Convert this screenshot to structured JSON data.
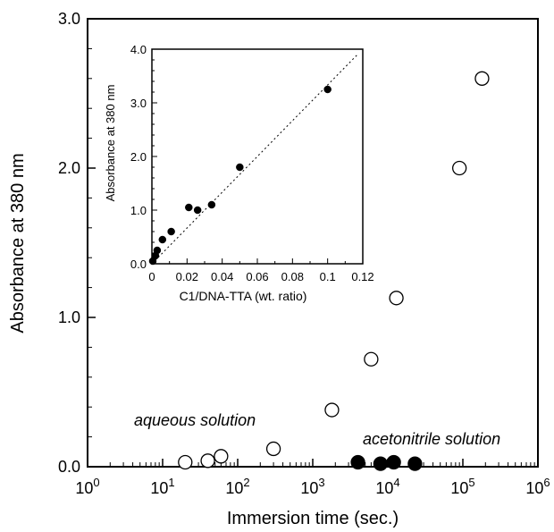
{
  "chart_data": [
    {
      "type": "scatter",
      "xscale": "log",
      "xlabel": "Immersion time (sec.)",
      "ylabel": "Absorbance at 380 nm",
      "xlim": [
        1,
        1000000
      ],
      "ylim": [
        0,
        3.0
      ],
      "x_ticks": [
        {
          "value": 1,
          "base": "10",
          "exp": "0"
        },
        {
          "value": 10,
          "base": "10",
          "exp": "1"
        },
        {
          "value": 100,
          "base": "10",
          "exp": "2"
        },
        {
          "value": 1000,
          "base": "10",
          "exp": "3"
        },
        {
          "value": 10000,
          "base": "10",
          "exp": "4"
        },
        {
          "value": 100000,
          "base": "10",
          "exp": "5"
        },
        {
          "value": 1000000,
          "base": "10",
          "exp": "6"
        }
      ],
      "y_ticks": [
        {
          "value": 0.0,
          "label": "0.0"
        },
        {
          "value": 1.0,
          "label": "1.0"
        },
        {
          "value": 2.0,
          "label": "2.0"
        },
        {
          "value": 3.0,
          "label": "3.0"
        }
      ],
      "series": [
        {
          "name": "aqueous solution",
          "marker": "open-circle",
          "x": [
            20,
            40,
            60,
            300,
            1800,
            6000,
            13000,
            90000,
            180000
          ],
          "y": [
            0.03,
            0.04,
            0.07,
            0.12,
            0.38,
            0.72,
            1.13,
            2.0,
            2.6
          ]
        },
        {
          "name": "acetonitrile solution",
          "marker": "filled-circle",
          "x": [
            4000,
            8000,
            12000,
            23000
          ],
          "y": [
            0.03,
            0.02,
            0.03,
            0.02
          ]
        }
      ],
      "grid": false
    },
    {
      "type": "scatter",
      "xlabel": "C1/DNA-TTA (wt. ratio)",
      "ylabel": "Absorbance at 380 nm",
      "xlim": [
        0,
        0.12
      ],
      "ylim": [
        0,
        4.0
      ],
      "x_ticks": [
        "0",
        "0.02",
        "0.04",
        "0.06",
        "0.08",
        "0.1",
        "0.12"
      ],
      "x_tick_values": [
        0,
        0.02,
        0.04,
        0.06,
        0.08,
        0.1,
        0.12
      ],
      "y_ticks": [
        "0.0",
        "1.0",
        "2.0",
        "3.0",
        "4.0"
      ],
      "y_tick_values": [
        0,
        1,
        2,
        3,
        4
      ],
      "series": [
        {
          "marker": "filled-circle",
          "x": [
            0.0005,
            0.002,
            0.003,
            0.006,
            0.011,
            0.021,
            0.026,
            0.034,
            0.05,
            0.1
          ],
          "y": [
            0.05,
            0.15,
            0.25,
            0.45,
            0.6,
            1.05,
            1.0,
            1.1,
            1.8,
            3.25
          ]
        }
      ],
      "trendline": {
        "style": "dotted",
        "x": [
          0,
          0.117
        ],
        "y": [
          0,
          3.9
        ]
      },
      "grid": false
    }
  ]
}
